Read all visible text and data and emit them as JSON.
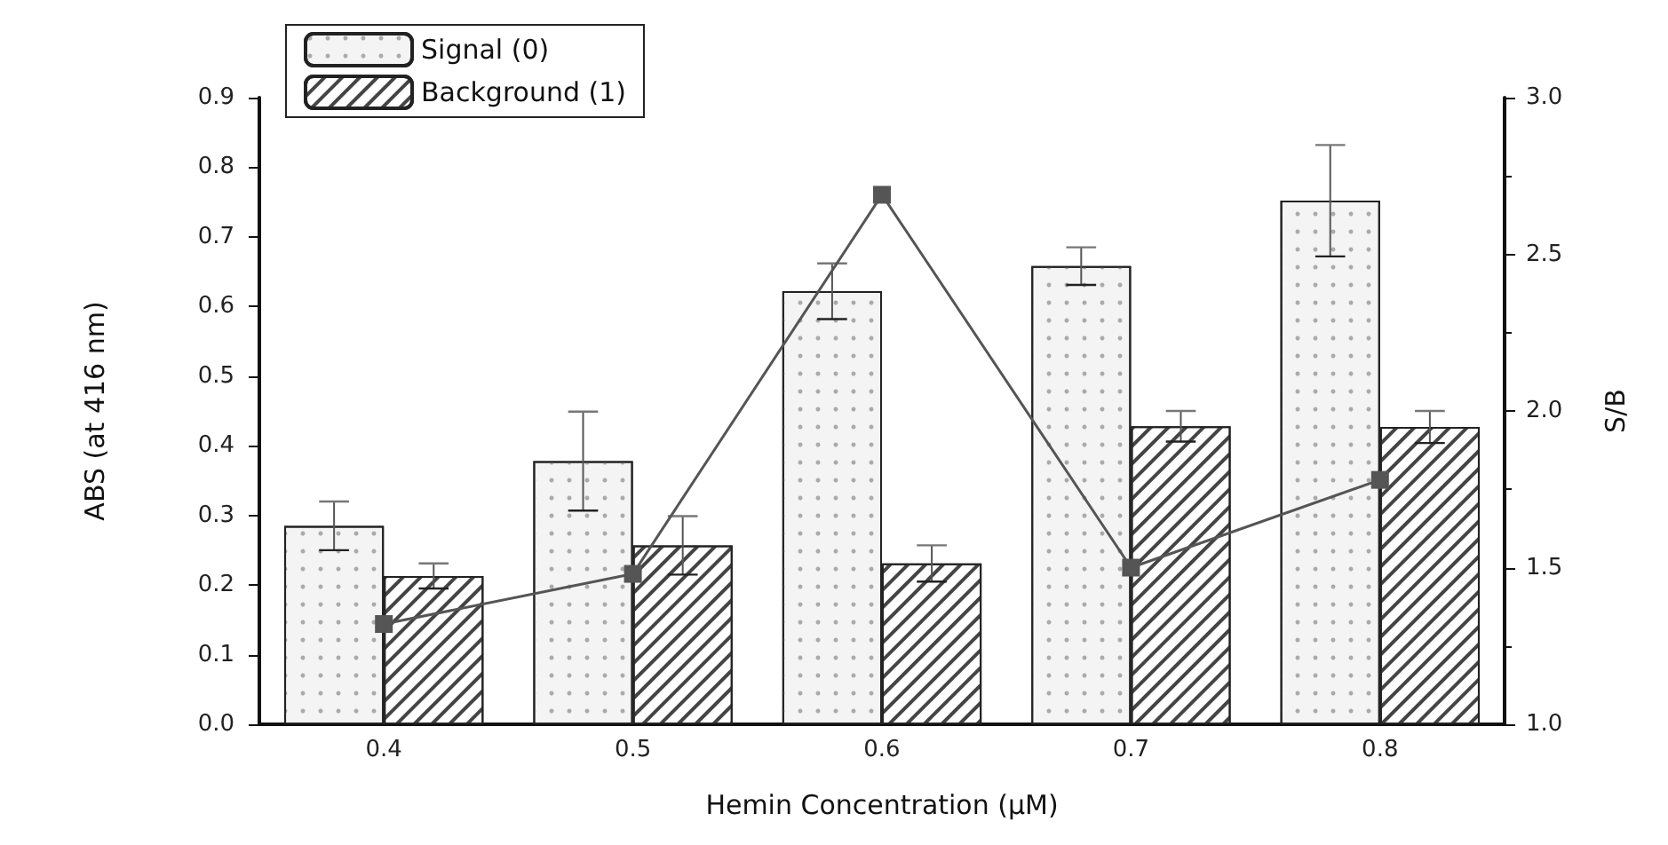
{
  "chart_data": {
    "type": "bar",
    "xlabel": "Hemin Concentration (μM)",
    "ylabel": "ABS (at 416 nm)",
    "y2label": "S/B",
    "categories": [
      "0.4",
      "0.5",
      "0.6",
      "0.7",
      "0.8"
    ],
    "series": [
      {
        "name": "Signal (0)",
        "color": "#f4f4f4",
        "values": [
          0.285,
          0.378,
          0.622,
          0.658,
          0.752
        ],
        "errors": [
          0.035,
          0.071,
          0.04,
          0.027,
          0.08
        ]
      },
      {
        "name": "Background (1)",
        "color": "#ffffff",
        "values": [
          0.213,
          0.257,
          0.231,
          0.428,
          0.427
        ],
        "errors": [
          0.018,
          0.042,
          0.026,
          0.022,
          0.023
        ]
      },
      {
        "type": "line",
        "axis": "y2",
        "color": "#555555",
        "marker": "square",
        "values": [
          1.32,
          1.48,
          2.69,
          1.5,
          1.78
        ]
      }
    ],
    "ylim": [
      0,
      0.9
    ],
    "yticks": [
      {
        "value": 0,
        "label": "0.0"
      },
      0.1,
      0.2,
      0.3,
      0.4,
      0.5,
      0.6,
      0.7,
      0.8,
      0.9
    ],
    "y2lim": [
      1,
      3
    ],
    "y2ticks": [
      {
        "value": 1,
        "label": "1.0"
      },
      1.5,
      {
        "value": 2,
        "label": "2.0"
      },
      2.5,
      {
        "value": 3,
        "label": "3.0"
      }
    ],
    "legend": "top left",
    "grid": false
  }
}
